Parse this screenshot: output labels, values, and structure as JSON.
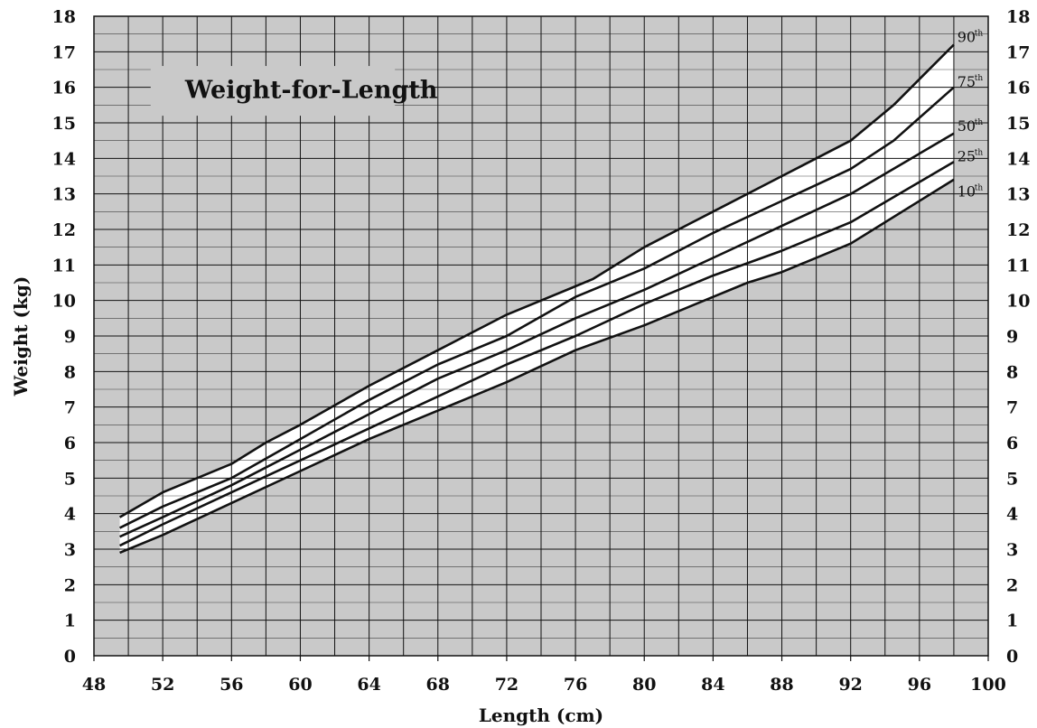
{
  "chart_data": {
    "type": "line",
    "title": "Weight-for-Length",
    "xlabel": "Length (cm)",
    "ylabel": "Weight (kg)",
    "xlim": [
      48,
      100
    ],
    "ylim": [
      0,
      18
    ],
    "x_ticks": [
      "48",
      "52",
      "56",
      "60",
      "64",
      "68",
      "72",
      "76",
      "80",
      "84",
      "88",
      "92",
      "96",
      "100"
    ],
    "y_ticks": [
      "0",
      "1",
      "2",
      "3",
      "4",
      "5",
      "6",
      "7",
      "8",
      "9",
      "10",
      "11",
      "12",
      "13",
      "14",
      "15",
      "16",
      "17",
      "18"
    ],
    "grid": true,
    "minor_grid_y": 0.5,
    "minor_grid_x": 2,
    "background_color": "#c9c9c9",
    "band_fill_color": "#ffffff",
    "line_color": "#111111",
    "series": [
      {
        "name": "90",
        "label_suffix": "th",
        "x": [
          49.5,
          52,
          56,
          58,
          60,
          64,
          68,
          72,
          74,
          77,
          80,
          84,
          88,
          92,
          94.5,
          98
        ],
        "y": [
          3.9,
          4.6,
          5.4,
          6.0,
          6.5,
          7.6,
          8.6,
          9.6,
          10.0,
          10.6,
          11.5,
          12.5,
          13.5,
          14.5,
          15.5,
          17.2
        ]
      },
      {
        "name": "75",
        "label_suffix": "th",
        "x": [
          49.5,
          52,
          56,
          60,
          64,
          68,
          72,
          76,
          80,
          84,
          88,
          92,
          94.5,
          98
        ],
        "y": [
          3.6,
          4.2,
          5.0,
          6.1,
          7.2,
          8.2,
          9.0,
          10.1,
          10.9,
          11.9,
          12.8,
          13.7,
          14.5,
          16.0
        ]
      },
      {
        "name": "50",
        "label_suffix": "th",
        "x": [
          49.5,
          52,
          56,
          60,
          64,
          68,
          72,
          76,
          80,
          84,
          88,
          92,
          98
        ],
        "y": [
          3.35,
          3.9,
          4.8,
          5.8,
          6.8,
          7.8,
          8.6,
          9.5,
          10.3,
          11.2,
          12.1,
          13.0,
          14.7
        ]
      },
      {
        "name": "25",
        "label_suffix": "th",
        "x": [
          49.5,
          52,
          56,
          60,
          64,
          68,
          72,
          76,
          80,
          84,
          88,
          92,
          98
        ],
        "y": [
          3.1,
          3.7,
          4.6,
          5.5,
          6.4,
          7.3,
          8.2,
          9.0,
          9.9,
          10.7,
          11.4,
          12.2,
          13.9
        ]
      },
      {
        "name": "10",
        "label_suffix": "th",
        "x": [
          49.5,
          52,
          56,
          60,
          64,
          68,
          72,
          76,
          80,
          84,
          86,
          88,
          92,
          98
        ],
        "y": [
          2.9,
          3.4,
          4.3,
          5.2,
          6.1,
          6.9,
          7.7,
          8.6,
          9.3,
          10.1,
          10.5,
          10.8,
          11.6,
          13.4
        ]
      }
    ]
  }
}
